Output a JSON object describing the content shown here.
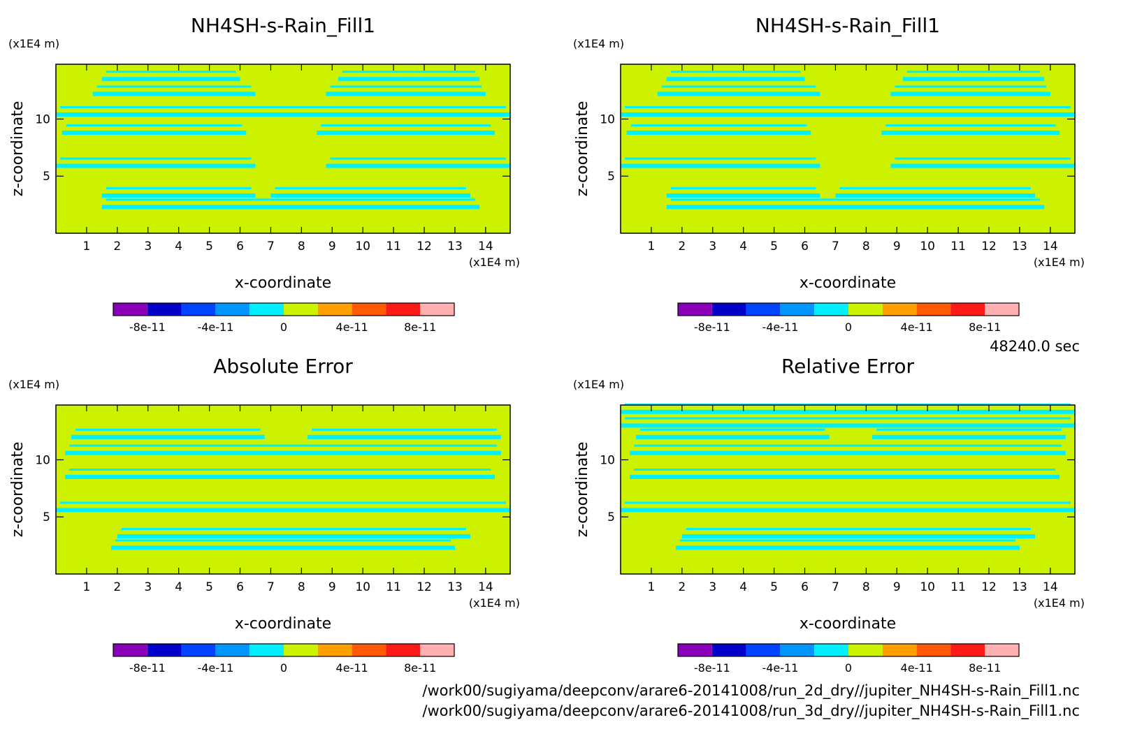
{
  "time_label": "48240.0 sec",
  "files": [
    "/work00/sugiyama/deepconv/arare6-20141008/run_2d_dry//jupiter_NH4SH-s-Rain_Fill1.nc",
    "/work00/sugiyama/deepconv/arare6-20141008/run_3d_dry//jupiter_NH4SH-s-Rain_Fill1.nc"
  ],
  "colors": {
    "background_field": "#ccf200",
    "contour_band": "#00f0ff",
    "frame": "#000000"
  },
  "colorbar": {
    "colors": [
      "#8a00b8",
      "#0000c8",
      "#0044ff",
      "#0096ff",
      "#00f0ff",
      "#ccf200",
      "#ffa000",
      "#ff5a00",
      "#ff1a1a",
      "#ffb0b0"
    ],
    "tick_labels": [
      "-8e-11",
      "-4e-11",
      "0",
      "4e-11",
      "8e-11"
    ],
    "tick_values": [
      -8e-11,
      -4e-11,
      0,
      4e-11,
      8e-11
    ],
    "range": [
      -1e-10,
      1e-10
    ]
  },
  "chart_data": [
    {
      "type": "heatmap",
      "title": "NH4SH-s-Rain_Fill1",
      "xlabel": "x-coordinate",
      "ylabel": "z-coordinate",
      "x_unit": "(x1E4 m)",
      "z_unit": "(x1E4 m)",
      "xlim": [
        0,
        14.8
      ],
      "zlim": [
        0,
        14.8
      ],
      "x_ticks": [
        1,
        2,
        3,
        4,
        5,
        6,
        7,
        8,
        9,
        10,
        11,
        12,
        13,
        14
      ],
      "z_ticks": [
        5,
        10
      ],
      "field": "mostly 0 (yellow-green) with thin cyan bands at small negative values",
      "bands": [
        {
          "x": [
            0.0,
            14.8
          ],
          "z": 10.4
        },
        {
          "x": [
            1.2,
            6.5
          ],
          "z": 12.2
        },
        {
          "x": [
            8.8,
            14.0
          ],
          "z": 12.2
        },
        {
          "x": [
            1.5,
            6.0
          ],
          "z": 13.5
        },
        {
          "x": [
            9.2,
            13.8
          ],
          "z": 13.5
        },
        {
          "x": [
            0.2,
            6.2
          ],
          "z": 8.8
        },
        {
          "x": [
            8.5,
            14.3
          ],
          "z": 8.8
        },
        {
          "x": [
            0.0,
            6.5
          ],
          "z": 5.9
        },
        {
          "x": [
            8.8,
            14.8
          ],
          "z": 5.9
        },
        {
          "x": [
            1.5,
            6.5
          ],
          "z": 3.3
        },
        {
          "x": [
            7.0,
            13.5
          ],
          "z": 3.3
        },
        {
          "x": [
            1.5,
            13.8
          ],
          "z": 2.3
        }
      ]
    },
    {
      "type": "heatmap",
      "title": "NH4SH-s-Rain_Fill1",
      "xlabel": "x-coordinate",
      "ylabel": "z-coordinate",
      "x_unit": "(x1E4 m)",
      "z_unit": "(x1E4 m)",
      "xlim": [
        0,
        14.8
      ],
      "zlim": [
        0,
        14.8
      ],
      "x_ticks": [
        1,
        2,
        3,
        4,
        5,
        6,
        7,
        8,
        9,
        10,
        11,
        12,
        13,
        14
      ],
      "z_ticks": [
        5,
        10
      ],
      "field": "mostly 0 (yellow-green) with thin cyan bands at small negative values",
      "bands": [
        {
          "x": [
            0.0,
            14.8
          ],
          "z": 10.4
        },
        {
          "x": [
            1.2,
            6.5
          ],
          "z": 12.2
        },
        {
          "x": [
            8.8,
            14.0
          ],
          "z": 12.2
        },
        {
          "x": [
            1.5,
            6.0
          ],
          "z": 13.5
        },
        {
          "x": [
            9.2,
            13.8
          ],
          "z": 13.5
        },
        {
          "x": [
            0.2,
            6.2
          ],
          "z": 8.8
        },
        {
          "x": [
            8.5,
            14.3
          ],
          "z": 8.8
        },
        {
          "x": [
            0.0,
            6.5
          ],
          "z": 5.9
        },
        {
          "x": [
            8.8,
            14.8
          ],
          "z": 5.9
        },
        {
          "x": [
            1.5,
            6.5
          ],
          "z": 3.3
        },
        {
          "x": [
            7.0,
            13.5
          ],
          "z": 3.3
        },
        {
          "x": [
            1.5,
            13.8
          ],
          "z": 2.3
        }
      ]
    },
    {
      "type": "heatmap",
      "title": "Absolute Error",
      "xlabel": "x-coordinate",
      "ylabel": "z-coordinate",
      "x_unit": "(x1E4 m)",
      "z_unit": "(x1E4 m)",
      "xlim": [
        0,
        14.8
      ],
      "zlim": [
        0,
        14.8
      ],
      "x_ticks": [
        1,
        2,
        3,
        4,
        5,
        6,
        7,
        8,
        9,
        10,
        11,
        12,
        13,
        14
      ],
      "z_ticks": [
        5,
        10
      ],
      "field": "mostly 0 (yellow-green) with sparse cyan patches",
      "bands": [
        {
          "x": [
            0.5,
            6.8
          ],
          "z": 12.0
        },
        {
          "x": [
            8.2,
            14.5
          ],
          "z": 12.0
        },
        {
          "x": [
            0.3,
            14.5
          ],
          "z": 10.6
        },
        {
          "x": [
            0.0,
            14.8
          ],
          "z": 5.6
        },
        {
          "x": [
            2.0,
            13.5
          ],
          "z": 3.3
        },
        {
          "x": [
            1.8,
            13.0
          ],
          "z": 2.3
        },
        {
          "x": [
            0.3,
            14.3
          ],
          "z": 8.5
        }
      ]
    },
    {
      "type": "heatmap",
      "title": "Relative Error",
      "xlabel": "x-coordinate",
      "ylabel": "z-coordinate",
      "x_unit": "(x1E4 m)",
      "z_unit": "(x1E4 m)",
      "xlim": [
        0,
        14.8
      ],
      "zlim": [
        0,
        14.8
      ],
      "x_ticks": [
        1,
        2,
        3,
        4,
        5,
        6,
        7,
        8,
        9,
        10,
        11,
        12,
        13,
        14
      ],
      "z_ticks": [
        5,
        10
      ],
      "field": "mostly 0 (yellow-green) with dense cyan bands near the top",
      "bands": [
        {
          "x": [
            0.0,
            14.8
          ],
          "z": 14.2
        },
        {
          "x": [
            0.0,
            14.8
          ],
          "z": 13.0
        },
        {
          "x": [
            0.5,
            6.8
          ],
          "z": 12.0
        },
        {
          "x": [
            8.2,
            14.5
          ],
          "z": 12.0
        },
        {
          "x": [
            0.3,
            14.5
          ],
          "z": 10.6
        },
        {
          "x": [
            0.0,
            14.8
          ],
          "z": 5.6
        },
        {
          "x": [
            2.0,
            13.5
          ],
          "z": 3.3
        },
        {
          "x": [
            1.8,
            13.0
          ],
          "z": 2.3
        },
        {
          "x": [
            0.3,
            14.3
          ],
          "z": 8.5
        }
      ]
    }
  ]
}
